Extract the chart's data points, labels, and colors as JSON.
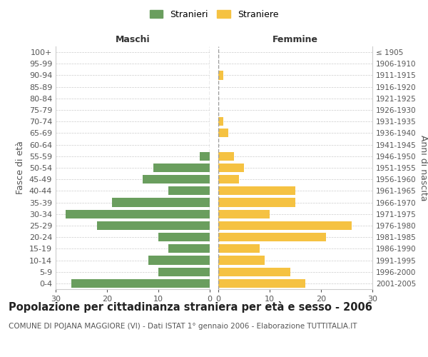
{
  "age_groups": [
    "0-4",
    "5-9",
    "10-14",
    "15-19",
    "20-24",
    "25-29",
    "30-34",
    "35-39",
    "40-44",
    "45-49",
    "50-54",
    "55-59",
    "60-64",
    "65-69",
    "70-74",
    "75-79",
    "80-84",
    "85-89",
    "90-94",
    "95-99",
    "100+"
  ],
  "birth_years": [
    "2001-2005",
    "1996-2000",
    "1991-1995",
    "1986-1990",
    "1981-1985",
    "1976-1980",
    "1971-1975",
    "1966-1970",
    "1961-1965",
    "1956-1960",
    "1951-1955",
    "1946-1950",
    "1941-1945",
    "1936-1940",
    "1931-1935",
    "1926-1930",
    "1921-1925",
    "1916-1920",
    "1911-1915",
    "1906-1910",
    "≤ 1905"
  ],
  "maschi": [
    27,
    10,
    12,
    8,
    10,
    22,
    28,
    19,
    8,
    13,
    11,
    2,
    0,
    0,
    0,
    0,
    0,
    0,
    0,
    0,
    0
  ],
  "femmine": [
    17,
    14,
    9,
    8,
    21,
    26,
    10,
    15,
    15,
    4,
    5,
    3,
    0,
    2,
    1,
    0,
    0,
    0,
    1,
    0,
    0
  ],
  "male_color": "#6a9e5e",
  "female_color": "#f5c242",
  "title": "Popolazione per cittadinanza straniera per età e sesso - 2006",
  "subtitle": "COMUNE DI POJANA MAGGIORE (VI) - Dati ISTAT 1° gennaio 2006 - Elaborazione TUTTITALIA.IT",
  "ylabel_left": "Fasce di età",
  "ylabel_right": "Anni di nascita",
  "header_left": "Maschi",
  "header_right": "Femmine",
  "legend_male": "Stranieri",
  "legend_female": "Straniere",
  "xlim": 30,
  "bg_color": "#ffffff",
  "grid_color": "#cccccc",
  "title_fontsize": 10.5,
  "subtitle_fontsize": 7.5,
  "label_fontsize": 9,
  "tick_fontsize": 8
}
